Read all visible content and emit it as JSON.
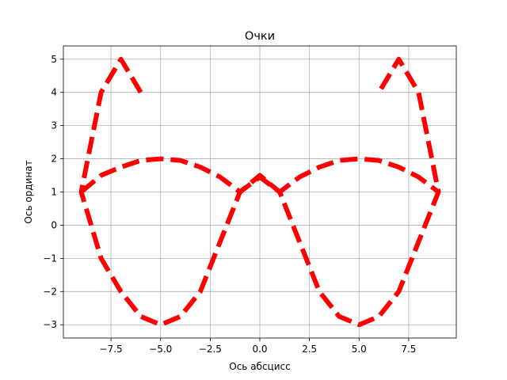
{
  "chart_data": {
    "type": "line",
    "title": "Очки",
    "xlabel": "Ось абсцисс",
    "ylabel": "Ось ординат",
    "xlim": [
      -9.9,
      9.9
    ],
    "ylim": [
      -3.4,
      5.4
    ],
    "xticks": [
      -7.5,
      -5.0,
      -2.5,
      0.0,
      2.5,
      5.0,
      7.5
    ],
    "xtick_labels": [
      "−7.5",
      "−5.0",
      "−2.5",
      "0.0",
      "2.5",
      "5.0",
      "7.5"
    ],
    "yticks": [
      -3,
      -2,
      -1,
      0,
      1,
      2,
      3,
      4,
      5
    ],
    "ytick_labels": [
      "−3",
      "−2",
      "−1",
      "0",
      "1",
      "2",
      "3",
      "4",
      "5"
    ],
    "grid": true,
    "line_color": "#ff0000",
    "line_style": "dashed",
    "series": [
      {
        "x": [
          -6,
          -7,
          -8,
          -9,
          -8,
          -7,
          -6,
          -5,
          -4,
          -3,
          -2,
          -1,
          0,
          1,
          2,
          3,
          4,
          5,
          6,
          7,
          8,
          9,
          8,
          7,
          6
        ],
        "y": [
          4,
          5,
          4,
          1,
          -1,
          -2,
          -2.75,
          -3,
          -2.75,
          -2,
          -0.5,
          1,
          1.5,
          1,
          -0.5,
          -2,
          -2.75,
          -3,
          -2.75,
          -2,
          -0.5,
          1,
          4,
          5,
          4
        ]
      },
      {
        "x": [
          -9,
          -8,
          -7,
          -6,
          -5,
          -4,
          -3,
          -2,
          -1,
          0,
          1,
          2,
          3,
          4,
          5,
          6,
          7,
          8,
          9
        ],
        "y": [
          1,
          1.5,
          1.75,
          1.95,
          2,
          1.95,
          1.75,
          1.45,
          1,
          1.45,
          1,
          1.45,
          1.75,
          1.95,
          2,
          1.95,
          1.75,
          1.45,
          1
        ]
      }
    ]
  }
}
